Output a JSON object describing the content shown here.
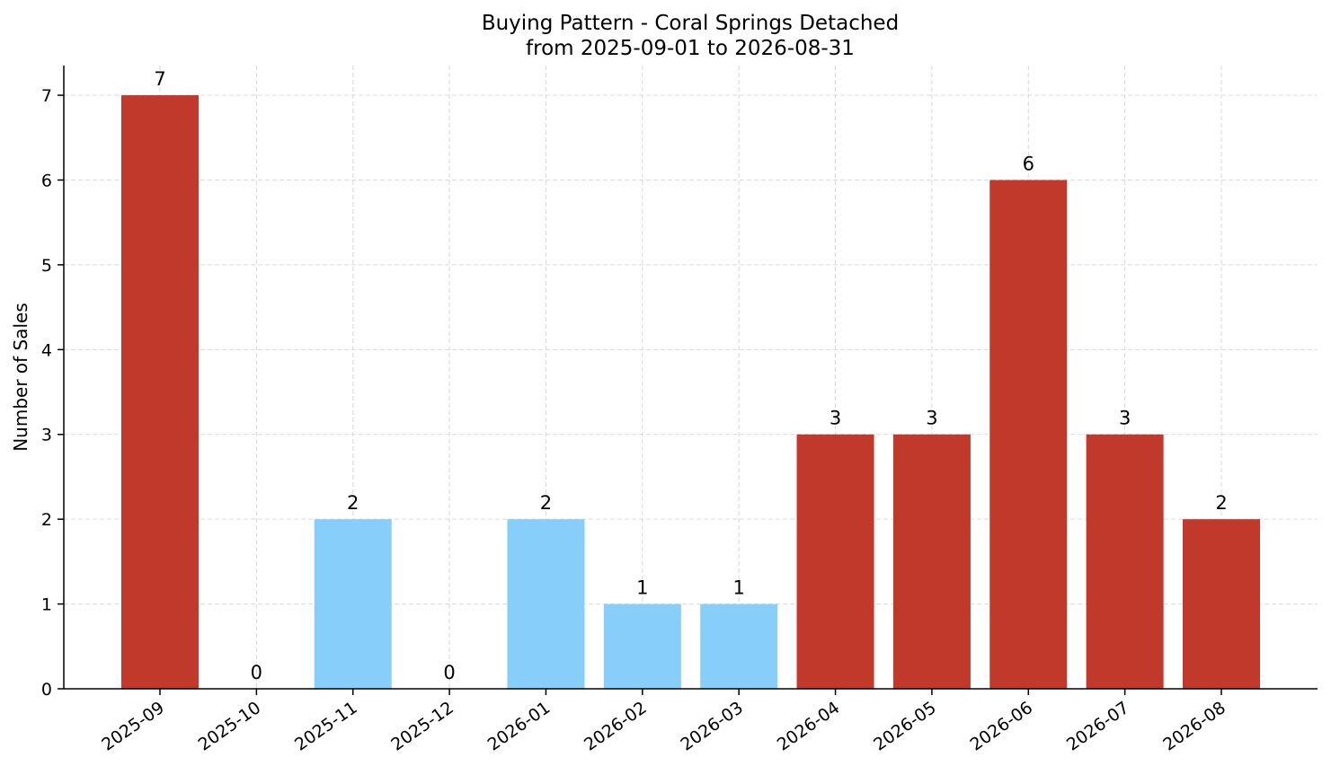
{
  "chart_data": {
    "type": "bar",
    "title": "Buying Pattern - Coral Springs Detached",
    "subtitle": "from 2025-09-01 to 2026-08-31",
    "xlabel": "",
    "ylabel": "Number of Sales",
    "categories": [
      "2025-09",
      "2025-10",
      "2025-11",
      "2025-12",
      "2026-01",
      "2026-02",
      "2026-03",
      "2026-04",
      "2026-05",
      "2026-06",
      "2026-07",
      "2026-08"
    ],
    "values": [
      7,
      0,
      2,
      0,
      2,
      1,
      1,
      3,
      3,
      6,
      3,
      2
    ],
    "bar_colors": [
      "#c0392b",
      "#c0392b",
      "#87cefa",
      "#87cefa",
      "#87cefa",
      "#87cefa",
      "#87cefa",
      "#c0392b",
      "#c0392b",
      "#c0392b",
      "#c0392b",
      "#c0392b"
    ],
    "ylim": [
      0,
      7.35
    ],
    "yticks": [
      0,
      1,
      2,
      3,
      4,
      5,
      6,
      7
    ],
    "grid": true,
    "legend": "none"
  }
}
